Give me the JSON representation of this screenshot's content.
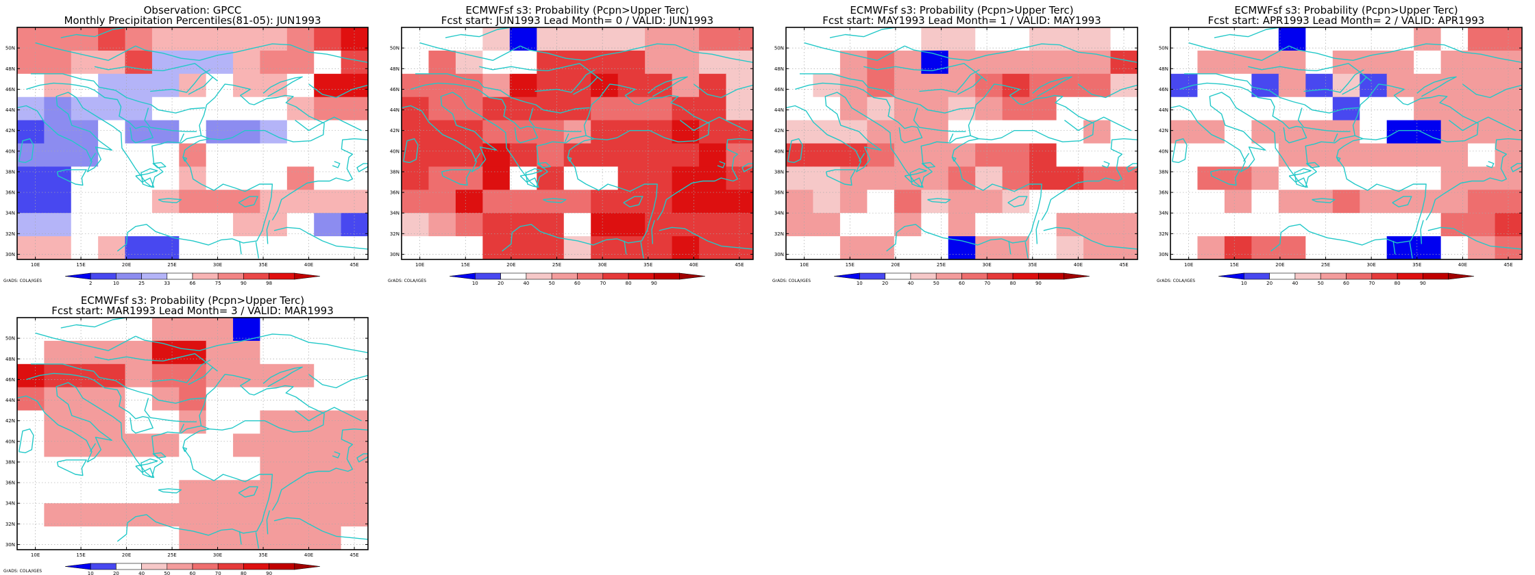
{
  "credit": "GrADS: COLA/IGES",
  "colors": {
    "coast": "#22c8c8",
    "grid": "#a8a8a8",
    "obs_scale": [
      "#0000f0",
      "#4848f0",
      "#8c8cf0",
      "#b4b4f8",
      "#ffffff",
      "#f8b4b4",
      "#f28484",
      "#ea4848",
      "#e01010",
      "#c00000"
    ],
    "prob_scale": [
      "#0000f0",
      "#4848f0",
      "#ffffff",
      "#f6c8c8",
      "#f39c9c",
      "#ee6e6e",
      "#e53a3a",
      "#dd1010",
      "#c00000",
      "#a00000"
    ]
  },
  "panels": [
    {
      "id": "obs",
      "title1": "Observation: GPCC",
      "title2": "Monthly Precipitation Percentiles(81-05): JUN1993",
      "scale": "obs",
      "colorbar_labels": [
        "2",
        "10",
        "25",
        "33",
        "66",
        "75",
        "90",
        "98"
      ],
      "grid": [
        "6667655555678",
        "6655733356647",
        "4543335455488",
        "3233344444566",
        "1224224223444",
        "2224446444444",
        "1144445444644",
        "1144456665555",
        "3344444455421",
        "5545114444444"
      ]
    },
    {
      "id": "lead0",
      "title1": "ECMWFsf s3: Probability (Pcpn>Upper Terc)",
      "title2": "Fcst start: JUN1993   Lead Month= 0 / VALID: JUN1993",
      "scale": "prob",
      "colorbar_labels": [
        "10",
        "20",
        "40",
        "50",
        "60",
        "70",
        "80",
        "90"
      ],
      "grid": [
        "2223033334455",
        "2532266664433",
        "5554766766463",
        "6556666555663",
        "6665554666766",
        "6667656666675",
        "6557262266776",
        "5575555666777",
        "3456662776666",
        "2226663666766"
      ]
    },
    {
      "id": "lead1",
      "title1": "ECMWFsf s3: Probability (Pcpn>Upper Terc)",
      "title2": "Fcst start: MAY1993   Lead Month= 1 / VALID: MAY1993",
      "scale": "prob",
      "colorbar_labels": [
        "10",
        "20",
        "40",
        "50",
        "60",
        "70",
        "80",
        "90"
      ],
      "grid": [
        "2222233223332",
        "2245404444446",
        "2345444565553",
        "2243443455222",
        "3334442222242",
        "6665444556222",
        "3344445356655",
        "4342534432222",
        "4422424222444",
        "2244220442344"
      ]
    },
    {
      "id": "lead2",
      "title1": "ECMWFsf s3: Probability (Pcpn>Upper Terc)",
      "title2": "Fcst start: APR1993   Lead Month= 2 / VALID: APR1993",
      "scale": "prob",
      "colorbar_labels": [
        "10",
        "20",
        "40",
        "50",
        "60",
        "70",
        "80",
        "90"
      ],
      "grid": [
        "2222022224255",
        "2444424442444",
        "1221413144444",
        "2222221224444",
        "4424444200444",
        "2222444444424",
        "2554222222444",
        "2242445444455",
        "2222222222556",
        "2465522200245"
      ]
    },
    {
      "id": "lead3",
      "title1": "ECMWFsf s3: Probability (Pcpn>Upper Terc)",
      "title2": "Fcst start: MAR1993   Lead Month= 3 / VALID: MAR1993",
      "scale": "prob",
      "colorbar_labels": [
        "10",
        "20",
        "40",
        "50",
        "60",
        "70",
        "80",
        "90"
      ],
      "grid": [
        "2222244402222",
        "2444477442222",
        "7666455444422",
        "5444245222222",
        "2444224224444",
        "2444442244444",
        "2222222224444",
        "2222224444444",
        "2444444444444",
        "2222224444442"
      ]
    }
  ],
  "x_ticks": [
    "10E",
    "15E",
    "20E",
    "25E",
    "30E",
    "35E",
    "40E",
    "45E"
  ],
  "y_ticks": [
    "30N",
    "32N",
    "34N",
    "36N",
    "38N",
    "40N",
    "42N",
    "44N",
    "46N",
    "48N",
    "50N"
  ]
}
